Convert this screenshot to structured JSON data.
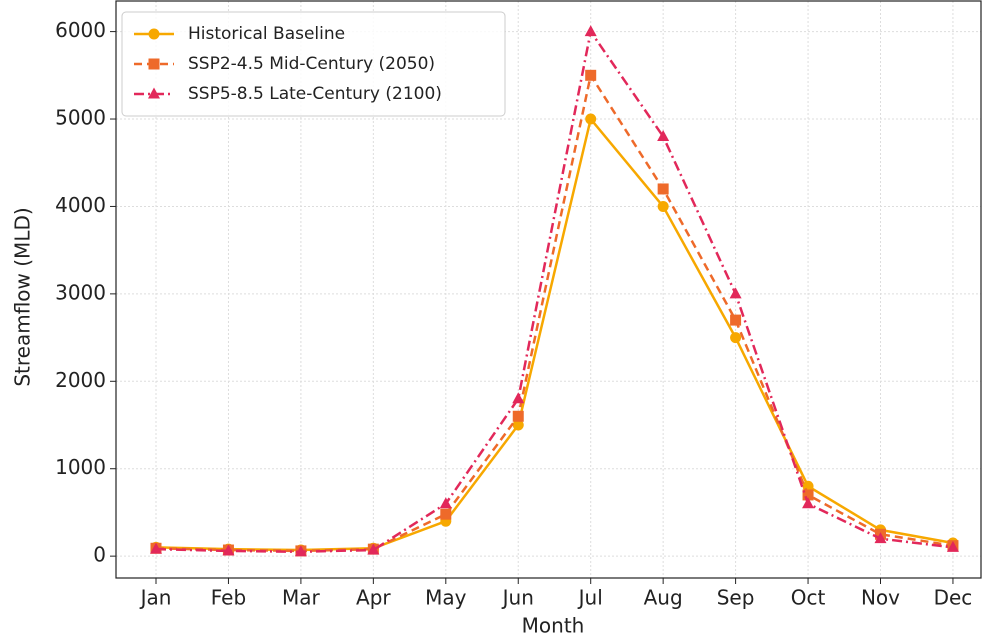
{
  "chart_data": {
    "type": "line",
    "x_label": "Month",
    "y_label": "Streamflow (MLD)",
    "categories": [
      "Jan",
      "Feb",
      "Mar",
      "Apr",
      "May",
      "Jun",
      "Jul",
      "Aug",
      "Sep",
      "Oct",
      "Nov",
      "Dec"
    ],
    "series": [
      {
        "name": "Historical Baseline",
        "color": "#f7a800",
        "linestyle": "solid",
        "marker": "circle",
        "values": [
          100,
          80,
          70,
          90,
          400,
          1500,
          5000,
          4000,
          2500,
          800,
          300,
          150
        ]
      },
      {
        "name": "SSP2-4.5 Mid-Century (2050)",
        "color": "#ee6a2a",
        "linestyle": "dashed",
        "marker": "square",
        "values": [
          90,
          70,
          60,
          80,
          480,
          1600,
          5500,
          4200,
          2700,
          700,
          250,
          120
        ]
      },
      {
        "name": "SSP5-8.5 Late-Century (2100)",
        "color": "#e2285a",
        "linestyle": "dashdot",
        "marker": "triangle",
        "values": [
          80,
          60,
          50,
          70,
          600,
          1800,
          6000,
          4800,
          3000,
          600,
          200,
          100
        ]
      }
    ],
    "ylim": [
      -250,
      6350
    ],
    "yticks": [
      0,
      1000,
      2000,
      3000,
      4000,
      5000,
      6000
    ],
    "grid": true,
    "legend": "upper left"
  }
}
